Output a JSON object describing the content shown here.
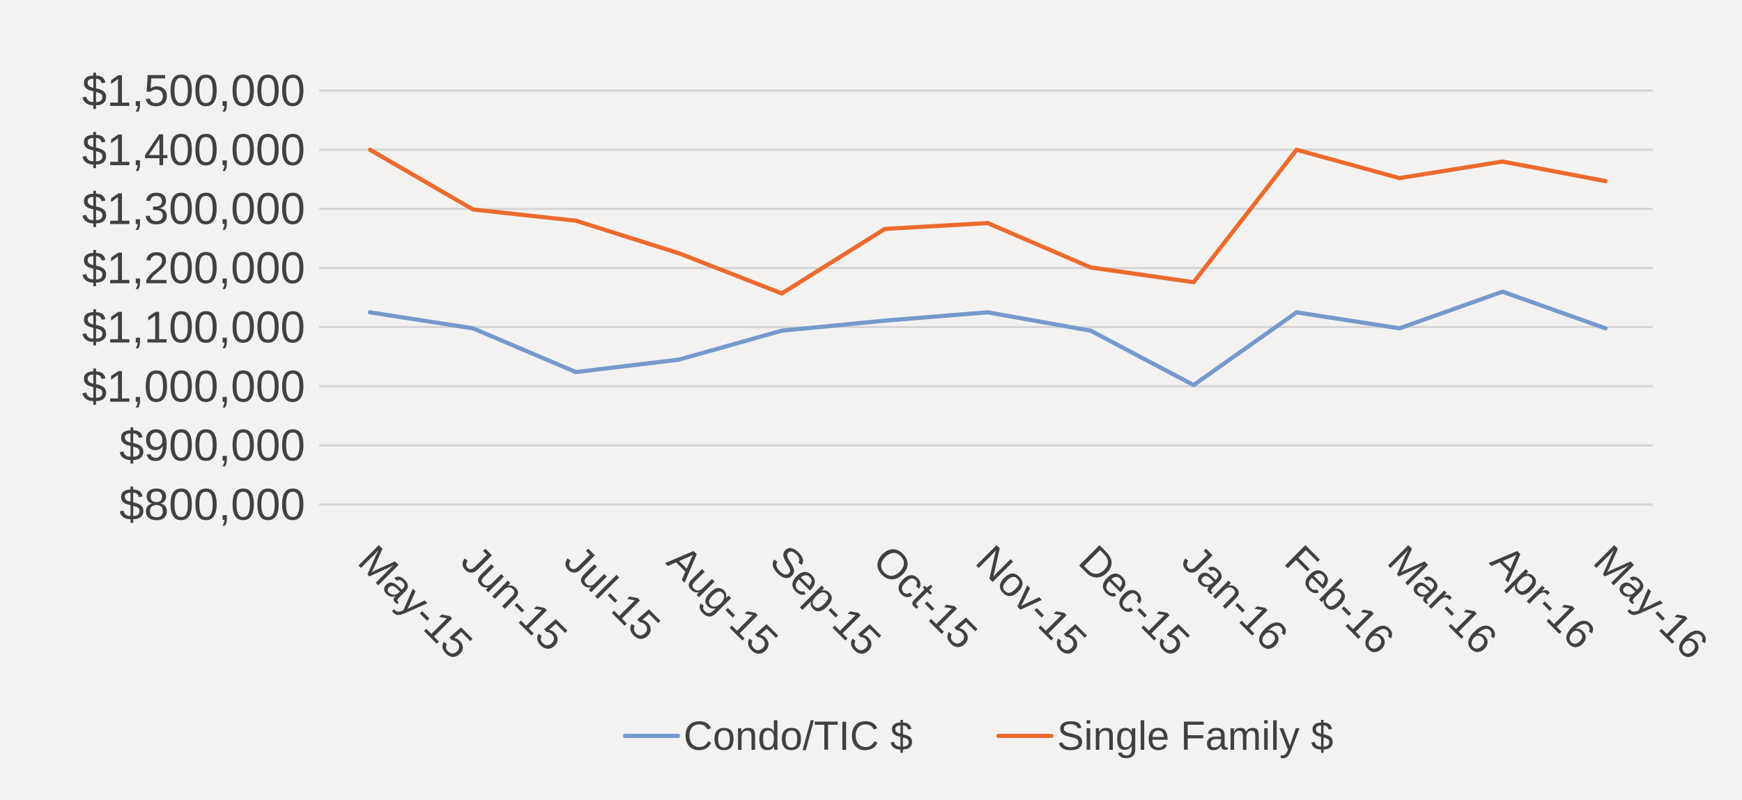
{
  "chart_data": {
    "type": "line",
    "title": "",
    "xlabel": "",
    "ylabel": "",
    "categories": [
      "May-15",
      "Jun-15",
      "Jul-15",
      "Aug-15",
      "Sep-15",
      "Oct-15",
      "Nov-15",
      "Dec-15",
      "Jan-16",
      "Feb-16",
      "Mar-16",
      "Apr-16",
      "May-16"
    ],
    "series": [
      {
        "name": "Condo/TIC $",
        "color": "#7599cc",
        "values": [
          1125000,
          1098000,
          1024000,
          1045000,
          1094000,
          1111000,
          1125000,
          1094000,
          1002000,
          1125000,
          1098000,
          1160000,
          1098000
        ]
      },
      {
        "name": "Single Family $",
        "color": "#ec6a2c",
        "values": [
          1400000,
          1299000,
          1280000,
          1225000,
          1157000,
          1266000,
          1276000,
          1201000,
          1176000,
          1400000,
          1352000,
          1380000,
          1347000
        ]
      }
    ],
    "ylim": [
      800000,
      1500000
    ],
    "yticks": [
      {
        "value": 1500000,
        "label": "$1,500,000"
      },
      {
        "value": 1400000,
        "label": "$1,400,000"
      },
      {
        "value": 1300000,
        "label": "$1,300,000"
      },
      {
        "value": 1200000,
        "label": "$1,200,000"
      },
      {
        "value": 1100000,
        "label": "$1,100,000"
      },
      {
        "value": 1000000,
        "label": "$1,000,000"
      },
      {
        "value": 900000,
        "label": "$900,000"
      },
      {
        "value": 800000,
        "label": "$800,000"
      }
    ],
    "grid": true,
    "gridColor": "#d4d4d4",
    "legend": "bottom"
  }
}
